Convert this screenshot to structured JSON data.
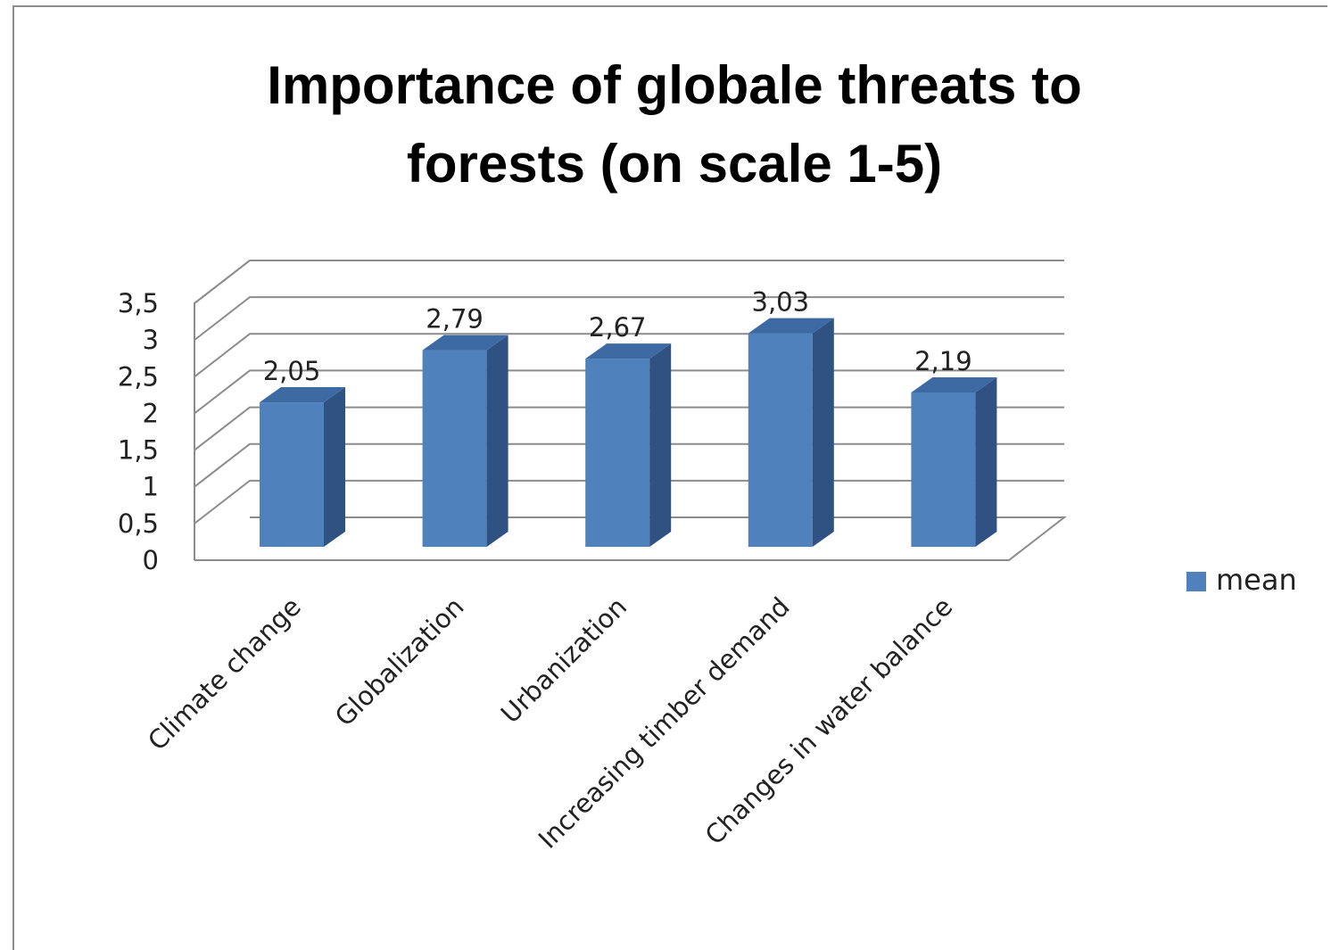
{
  "chart_data": {
    "type": "bar",
    "title_lines": [
      "Importance of globale threats to",
      "forests (on scale 1-5)"
    ],
    "categories": [
      "Climate change",
      "Globalization",
      "Urbanization",
      "Increasing timber demand",
      "Changes in water balance"
    ],
    "series": [
      {
        "name": "mean",
        "values": [
          2.05,
          2.79,
          2.67,
          3.03,
          2.19
        ],
        "labels": [
          "2,05",
          "2,79",
          "2,67",
          "3,03",
          "2,19"
        ]
      }
    ],
    "yticks": [
      "0",
      "0,5",
      "1",
      "1,5",
      "2",
      "2,5",
      "3",
      "3,5"
    ],
    "ylim": [
      0,
      3.5
    ],
    "grid": true,
    "legend_position": "right",
    "colors": {
      "bar_front": "#4f81bd",
      "bar_side": "#2f5283",
      "bar_top": "#3d6aa3",
      "grid": "#8c8c8c",
      "frame": "#8c8c8c"
    }
  }
}
